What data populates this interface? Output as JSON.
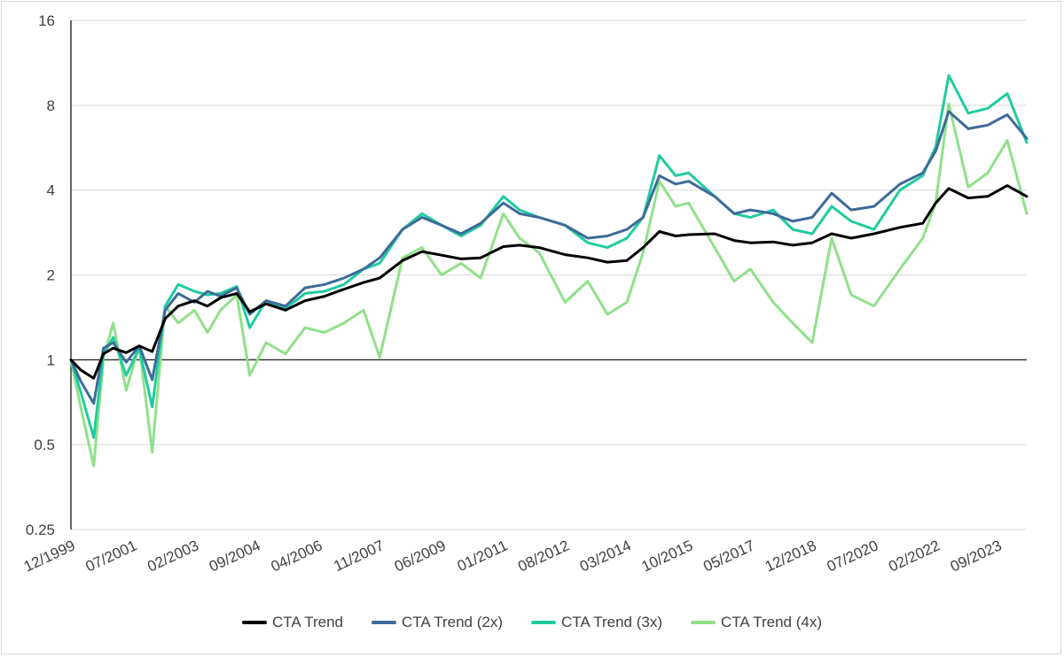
{
  "chart_data": {
    "type": "line",
    "title": "",
    "xlabel": "",
    "ylabel": "",
    "y_scale": "log2",
    "ylim": [
      0.25,
      16
    ],
    "y_ticks": [
      0.25,
      0.5,
      1,
      2,
      4,
      8,
      16
    ],
    "y_tick_labels": [
      "0.25",
      "0.5",
      "1",
      "2",
      "4",
      "8",
      "16"
    ],
    "x_range": [
      "12/1999",
      "06/2024"
    ],
    "x_tick_labels": [
      "12/1999",
      "07/2001",
      "02/2003",
      "09/2004",
      "04/2006",
      "11/2007",
      "06/2009",
      "01/2011",
      "08/2012",
      "03/2014",
      "10/2015",
      "05/2017",
      "12/2018",
      "07/2020",
      "02/2022",
      "09/2023"
    ],
    "grid": "horizontal",
    "legend_position": "bottom",
    "series": [
      {
        "name": "CTA Trend",
        "color": "#000000",
        "points": [
          [
            "12/1999",
            1.0
          ],
          [
            "03/2000",
            0.92
          ],
          [
            "07/2000",
            0.86
          ],
          [
            "10/2000",
            1.05
          ],
          [
            "01/2001",
            1.1
          ],
          [
            "05/2001",
            1.06
          ],
          [
            "09/2001",
            1.12
          ],
          [
            "01/2002",
            1.07
          ],
          [
            "05/2002",
            1.4
          ],
          [
            "09/2002",
            1.55
          ],
          [
            "02/2003",
            1.62
          ],
          [
            "06/2003",
            1.55
          ],
          [
            "10/2003",
            1.66
          ],
          [
            "03/2004",
            1.72
          ],
          [
            "07/2004",
            1.48
          ],
          [
            "12/2004",
            1.58
          ],
          [
            "06/2005",
            1.5
          ],
          [
            "12/2005",
            1.62
          ],
          [
            "06/2006",
            1.68
          ],
          [
            "12/2006",
            1.78
          ],
          [
            "06/2007",
            1.88
          ],
          [
            "11/2007",
            1.95
          ],
          [
            "06/2008",
            2.25
          ],
          [
            "12/2008",
            2.42
          ],
          [
            "06/2009",
            2.35
          ],
          [
            "12/2009",
            2.28
          ],
          [
            "06/2010",
            2.3
          ],
          [
            "01/2011",
            2.52
          ],
          [
            "06/2011",
            2.55
          ],
          [
            "12/2011",
            2.5
          ],
          [
            "08/2012",
            2.36
          ],
          [
            "03/2013",
            2.3
          ],
          [
            "09/2013",
            2.22
          ],
          [
            "03/2014",
            2.25
          ],
          [
            "08/2014",
            2.5
          ],
          [
            "01/2015",
            2.85
          ],
          [
            "06/2015",
            2.75
          ],
          [
            "10/2015",
            2.78
          ],
          [
            "06/2016",
            2.8
          ],
          [
            "12/2016",
            2.65
          ],
          [
            "05/2017",
            2.6
          ],
          [
            "12/2017",
            2.62
          ],
          [
            "06/2018",
            2.55
          ],
          [
            "12/2018",
            2.6
          ],
          [
            "06/2019",
            2.8
          ],
          [
            "12/2019",
            2.7
          ],
          [
            "07/2020",
            2.8
          ],
          [
            "03/2021",
            2.95
          ],
          [
            "10/2021",
            3.05
          ],
          [
            "02/2022",
            3.6
          ],
          [
            "06/2022",
            4.05
          ],
          [
            "12/2022",
            3.75
          ],
          [
            "06/2023",
            3.8
          ],
          [
            "12/2023",
            4.15
          ],
          [
            "06/2024",
            3.8
          ]
        ]
      },
      {
        "name": "CTA Trend (2x)",
        "color": "#3d6b99",
        "points": [
          [
            "12/1999",
            1.0
          ],
          [
            "03/2000",
            0.84
          ],
          [
            "07/2000",
            0.7
          ],
          [
            "10/2000",
            1.1
          ],
          [
            "01/2001",
            1.15
          ],
          [
            "05/2001",
            0.98
          ],
          [
            "09/2001",
            1.12
          ],
          [
            "01/2002",
            0.85
          ],
          [
            "05/2002",
            1.5
          ],
          [
            "09/2002",
            1.72
          ],
          [
            "02/2003",
            1.6
          ],
          [
            "06/2003",
            1.75
          ],
          [
            "10/2003",
            1.68
          ],
          [
            "03/2004",
            1.8
          ],
          [
            "07/2004",
            1.45
          ],
          [
            "12/2004",
            1.62
          ],
          [
            "06/2005",
            1.55
          ],
          [
            "12/2005",
            1.8
          ],
          [
            "06/2006",
            1.85
          ],
          [
            "12/2006",
            1.95
          ],
          [
            "06/2007",
            2.1
          ],
          [
            "11/2007",
            2.3
          ],
          [
            "06/2008",
            2.9
          ],
          [
            "12/2008",
            3.2
          ],
          [
            "06/2009",
            3.0
          ],
          [
            "12/2009",
            2.8
          ],
          [
            "06/2010",
            3.05
          ],
          [
            "01/2011",
            3.6
          ],
          [
            "06/2011",
            3.3
          ],
          [
            "12/2011",
            3.2
          ],
          [
            "08/2012",
            3.0
          ],
          [
            "03/2013",
            2.7
          ],
          [
            "09/2013",
            2.75
          ],
          [
            "03/2014",
            2.9
          ],
          [
            "08/2014",
            3.2
          ],
          [
            "01/2015",
            4.5
          ],
          [
            "06/2015",
            4.2
          ],
          [
            "10/2015",
            4.3
          ],
          [
            "06/2016",
            3.8
          ],
          [
            "12/2016",
            3.3
          ],
          [
            "05/2017",
            3.4
          ],
          [
            "12/2017",
            3.3
          ],
          [
            "06/2018",
            3.1
          ],
          [
            "12/2018",
            3.2
          ],
          [
            "06/2019",
            3.9
          ],
          [
            "12/2019",
            3.4
          ],
          [
            "07/2020",
            3.5
          ],
          [
            "03/2021",
            4.2
          ],
          [
            "10/2021",
            4.6
          ],
          [
            "02/2022",
            5.5
          ],
          [
            "06/2022",
            7.6
          ],
          [
            "12/2022",
            6.6
          ],
          [
            "06/2023",
            6.8
          ],
          [
            "12/2023",
            7.4
          ],
          [
            "06/2024",
            6.1
          ]
        ]
      },
      {
        "name": "CTA Trend (3x)",
        "color": "#1fcc9f",
        "points": [
          [
            "12/1999",
            1.0
          ],
          [
            "03/2000",
            0.77
          ],
          [
            "07/2000",
            0.53
          ],
          [
            "10/2000",
            1.05
          ],
          [
            "01/2001",
            1.2
          ],
          [
            "05/2001",
            0.88
          ],
          [
            "09/2001",
            1.1
          ],
          [
            "01/2002",
            0.68
          ],
          [
            "05/2002",
            1.55
          ],
          [
            "09/2002",
            1.85
          ],
          [
            "02/2003",
            1.75
          ],
          [
            "06/2003",
            1.7
          ],
          [
            "10/2003",
            1.72
          ],
          [
            "03/2004",
            1.82
          ],
          [
            "07/2004",
            1.3
          ],
          [
            "12/2004",
            1.62
          ],
          [
            "06/2005",
            1.52
          ],
          [
            "12/2005",
            1.72
          ],
          [
            "06/2006",
            1.75
          ],
          [
            "12/2006",
            1.85
          ],
          [
            "06/2007",
            2.1
          ],
          [
            "11/2007",
            2.2
          ],
          [
            "06/2008",
            2.9
          ],
          [
            "12/2008",
            3.3
          ],
          [
            "06/2009",
            3.0
          ],
          [
            "12/2009",
            2.75
          ],
          [
            "06/2010",
            3.0
          ],
          [
            "01/2011",
            3.8
          ],
          [
            "06/2011",
            3.4
          ],
          [
            "12/2011",
            3.2
          ],
          [
            "08/2012",
            3.0
          ],
          [
            "03/2013",
            2.6
          ],
          [
            "09/2013",
            2.5
          ],
          [
            "03/2014",
            2.7
          ],
          [
            "08/2014",
            3.2
          ],
          [
            "01/2015",
            5.3
          ],
          [
            "06/2015",
            4.5
          ],
          [
            "10/2015",
            4.6
          ],
          [
            "06/2016",
            3.8
          ],
          [
            "12/2016",
            3.3
          ],
          [
            "05/2017",
            3.2
          ],
          [
            "12/2017",
            3.4
          ],
          [
            "06/2018",
            2.9
          ],
          [
            "12/2018",
            2.8
          ],
          [
            "06/2019",
            3.5
          ],
          [
            "12/2019",
            3.1
          ],
          [
            "07/2020",
            2.9
          ],
          [
            "03/2021",
            4.0
          ],
          [
            "10/2021",
            4.5
          ],
          [
            "02/2022",
            5.7
          ],
          [
            "06/2022",
            10.2
          ],
          [
            "12/2022",
            7.5
          ],
          [
            "06/2023",
            7.8
          ],
          [
            "12/2023",
            8.8
          ],
          [
            "06/2024",
            5.9
          ]
        ]
      },
      {
        "name": "CTA Trend (4x)",
        "color": "#90e08a",
        "points": [
          [
            "12/1999",
            1.0
          ],
          [
            "03/2000",
            0.68
          ],
          [
            "07/2000",
            0.42
          ],
          [
            "10/2000",
            1.02
          ],
          [
            "01/2001",
            1.35
          ],
          [
            "05/2001",
            0.78
          ],
          [
            "09/2001",
            1.12
          ],
          [
            "01/2002",
            0.47
          ],
          [
            "05/2002",
            1.55
          ],
          [
            "09/2002",
            1.35
          ],
          [
            "02/2003",
            1.5
          ],
          [
            "06/2003",
            1.25
          ],
          [
            "10/2003",
            1.5
          ],
          [
            "03/2004",
            1.7
          ],
          [
            "07/2004",
            0.88
          ],
          [
            "12/2004",
            1.15
          ],
          [
            "06/2005",
            1.05
          ],
          [
            "12/2005",
            1.3
          ],
          [
            "06/2006",
            1.25
          ],
          [
            "12/2006",
            1.35
          ],
          [
            "06/2007",
            1.5
          ],
          [
            "11/2007",
            1.02
          ],
          [
            "06/2008",
            2.3
          ],
          [
            "12/2008",
            2.5
          ],
          [
            "06/2009",
            2.0
          ],
          [
            "12/2009",
            2.2
          ],
          [
            "06/2010",
            1.95
          ],
          [
            "01/2011",
            3.3
          ],
          [
            "06/2011",
            2.7
          ],
          [
            "12/2011",
            2.4
          ],
          [
            "08/2012",
            1.6
          ],
          [
            "03/2013",
            1.9
          ],
          [
            "09/2013",
            1.45
          ],
          [
            "03/2014",
            1.6
          ],
          [
            "08/2014",
            2.4
          ],
          [
            "01/2015",
            4.3
          ],
          [
            "06/2015",
            3.5
          ],
          [
            "10/2015",
            3.6
          ],
          [
            "06/2016",
            2.5
          ],
          [
            "12/2016",
            1.9
          ],
          [
            "05/2017",
            2.1
          ],
          [
            "12/2017",
            1.6
          ],
          [
            "06/2018",
            1.35
          ],
          [
            "12/2018",
            1.15
          ],
          [
            "06/2019",
            2.7
          ],
          [
            "12/2019",
            1.7
          ],
          [
            "07/2020",
            1.55
          ],
          [
            "03/2021",
            2.1
          ],
          [
            "10/2021",
            2.7
          ],
          [
            "02/2022",
            3.6
          ],
          [
            "06/2022",
            8.1
          ],
          [
            "12/2022",
            4.1
          ],
          [
            "06/2023",
            4.6
          ],
          [
            "12/2023",
            6.0
          ],
          [
            "06/2024",
            3.3
          ]
        ]
      }
    ]
  }
}
